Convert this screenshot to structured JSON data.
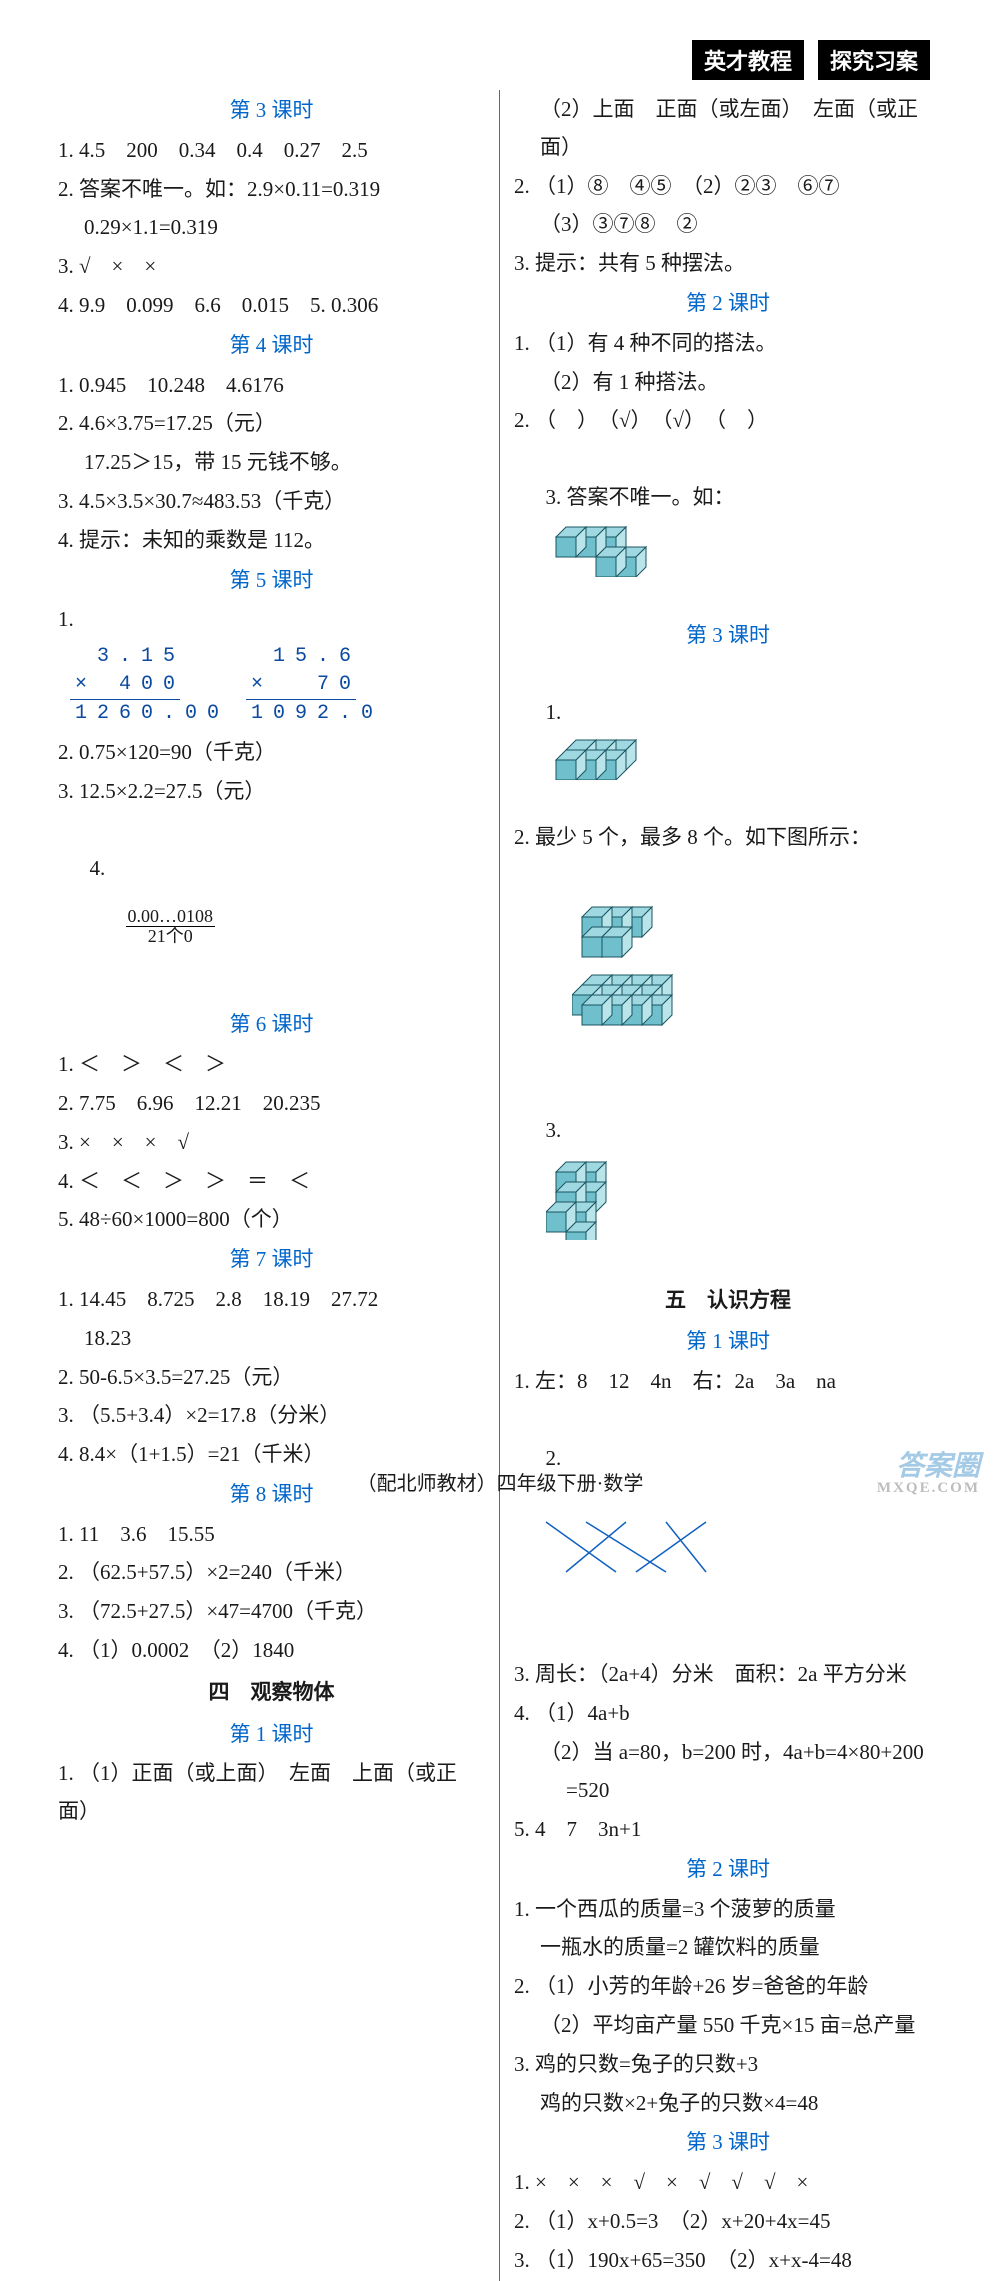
{
  "header": {
    "badge1": "英才教程",
    "badge2": "探究习案"
  },
  "footer": "（配北师教材）四年级下册·数学",
  "watermark": {
    "main": "答案圈",
    "sub": "MXQE.COM"
  },
  "left": {
    "lesson3": {
      "title": "第 3 课时",
      "l1": "1. 4.5　200　0.34　0.4　0.27　2.5",
      "l2": "2. 答案不唯一。如：2.9×0.11=0.319",
      "l2b": "0.29×1.1=0.319",
      "l3": "3. √　×　×",
      "l4": "4. 9.9　0.099　6.6　0.015　5. 0.306"
    },
    "lesson4": {
      "title": "第 4 课时",
      "l1": "1. 0.945　10.248　4.6176",
      "l2": "2. 4.6×3.75=17.25（元）",
      "l2b": "17.25＞15，带 15 元钱不够。",
      "l3": "3. 4.5×3.5×30.7≈483.53（千克）",
      "l4": "4. 提示：未知的乘数是 112。"
    },
    "lesson5": {
      "title": "第 5 课时",
      "mult": {
        "a": {
          "top": [
            "3",
            ".",
            "1",
            "5"
          ],
          "mid": [
            "",
            "4",
            "0",
            "0"
          ],
          "bot": [
            "1",
            "2",
            "6",
            "0",
            ".",
            "0",
            "0"
          ]
        },
        "b": {
          "top": [
            "1",
            "5",
            ".",
            "6"
          ],
          "mid": [
            "",
            "",
            "7",
            "0"
          ],
          "bot": [
            "1",
            "0",
            "9",
            "2",
            ".",
            "0"
          ]
        }
      },
      "l2": "2. 0.75×120=90（千克）",
      "l3": "3. 12.5×2.2=27.5（元）",
      "l4a": "4. ",
      "l4top": "0.00…0108",
      "l4bot": "21个0"
    },
    "lesson6": {
      "title": "第 6 课时",
      "l1": "1. ＜　＞　＜　＞",
      "l2": "2. 7.75　6.96　12.21　20.235",
      "l3": "3. ×　×　×　√",
      "l4": "4. ＜　＜　＞　＞　＝　＜",
      "l5": "5. 48÷60×1000=800（个）"
    },
    "lesson7": {
      "title": "第 7 课时",
      "l1": "1. 14.45　8.725　2.8　18.19　27.72",
      "l1b": "18.23",
      "l2": "2. 50-6.5×3.5=27.25（元）",
      "l3": "3. （5.5+3.4）×2=17.8（分米）",
      "l4": "4. 8.4×（1+1.5）=21（千米）"
    },
    "lesson8": {
      "title": "第 8 课时",
      "l1": "1. 11　3.6　15.55",
      "l2": "2. （62.5+57.5）×2=240（千米）",
      "l3": "3. （72.5+27.5）×47=4700（千克）",
      "l4": "4. （1）0.0002　（2）1840"
    },
    "unit4": {
      "title": "四　观察物体",
      "lesson1": "第 1 课时",
      "l1": "1. （1）正面（或上面）　左面　上面（或正面）"
    }
  },
  "right": {
    "cont": {
      "l1": "（2）上面　正面（或左面）　左面（或正面）",
      "l2": "2. （1）⑧　④⑤　（2）②③　⑥⑦",
      "l2b": "（3）③⑦⑧　②",
      "l3": "3. 提示：共有 5 种摆法。"
    },
    "lesson2": {
      "title": "第 2 课时",
      "l1": "1. （1）有 4 种不同的搭法。",
      "l1b": "（2）有 1 种搭法。",
      "l2": "2. （　）　（√）　（√）　（　）",
      "l3": "3. 答案不唯一。如："
    },
    "lesson3": {
      "title": "第 3 课时",
      "l1": "1.",
      "l2": "2. 最少 5 个，最多 8 个。如下图所示：",
      "l3": "3."
    },
    "unit5": {
      "title": "五　认识方程",
      "lesson1": "第 1 课时",
      "l1": "1. 左：8　12　4n　右：2a　3a　na",
      "l2": "2.",
      "l3": "3. 周长：（2a+4）分米　面积：2a 平方分米",
      "l4": "4. （1）4a+b",
      "l4b": "（2）当 a=80，b=200 时，4a+b=4×80+200",
      "l4c": "=520",
      "l5": "5. 4　7　3n+1",
      "lesson2": "第 2 课时",
      "u2l1": "1. 一个西瓜的质量=3 个菠萝的质量",
      "u2l1b": "一瓶水的质量=2 罐饮料的质量",
      "u2l2": "2. （1）小芳的年龄+26 岁=爸爸的年龄",
      "u2l2b": "（2）平均亩产量 550 千克×15 亩=总产量",
      "u2l3": "3. 鸡的只数=兔子的只数+3",
      "u2l3b": "鸡的只数×2+兔子的只数×4=48",
      "lesson3": "第 3 课时",
      "u3l1": "1. ×　×　×　√　×　√　√　√　×",
      "u3l2": "2. （1）x+0.5=3　（2）x+20+4x=45",
      "u3l3": "3. （1）190x+65=350　（2）x+x-4=48"
    }
  },
  "cubeColors": {
    "top": "#9fd8e0",
    "left": "#6fc0cc",
    "right": "#b8e4ea",
    "stroke": "#1a5560"
  },
  "crossColors": {
    "lines": "#1060c0"
  }
}
